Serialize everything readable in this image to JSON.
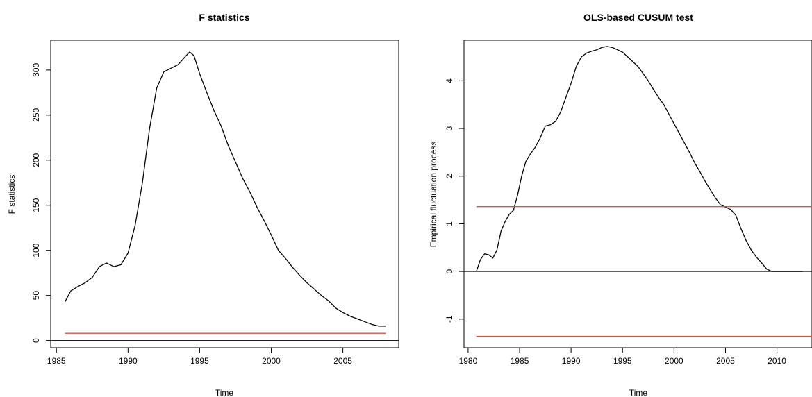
{
  "chart_data": [
    {
      "type": "line",
      "title": "F statistics",
      "xlabel": "Time",
      "ylabel": "F statistics",
      "xlim": [
        1984.6,
        2008.9
      ],
      "ylim": [
        -8,
        333
      ],
      "xticks": [
        1985,
        1990,
        1995,
        2000,
        2005
      ],
      "yticks": [
        0,
        50,
        100,
        150,
        200,
        250,
        300
      ],
      "grid": false,
      "series": [
        {
          "color": "#000000",
          "x": [
            1985.6,
            1986.0,
            1986.5,
            1987.0,
            1987.5,
            1988.0,
            1988.5,
            1989.0,
            1989.5,
            1990.0,
            1990.5,
            1991.0,
            1991.5,
            1992.0,
            1992.5,
            1993.0,
            1993.5,
            1994.0,
            1994.3,
            1994.6,
            1995.0,
            1995.5,
            1996.0,
            1996.5,
            1997.0,
            1997.5,
            1998.0,
            1998.5,
            1999.0,
            1999.5,
            2000.0,
            2000.5,
            2001.0,
            2001.5,
            2002.0,
            2002.5,
            2003.0,
            2003.5,
            2004.0,
            2004.5,
            2005.0,
            2005.5,
            2006.0,
            2006.5,
            2007.0,
            2007.5,
            2008.0
          ],
          "y": [
            43,
            55,
            60,
            64,
            70,
            82,
            86,
            82,
            84,
            97,
            128,
            175,
            235,
            280,
            298,
            302,
            306,
            315,
            320,
            316,
            296,
            275,
            255,
            238,
            216,
            198,
            180,
            165,
            148,
            133,
            117,
            100,
            91,
            81,
            72,
            64,
            57,
            50,
            44,
            36,
            31,
            27,
            24,
            21,
            18,
            16,
            16
          ]
        },
        {
          "color": "#e74c3c",
          "x": [
            1985.6,
            2008.0
          ],
          "y": [
            8,
            8
          ]
        }
      ],
      "hlines": [
        0
      ]
    },
    {
      "type": "line",
      "title": "OLS-based CUSUM test",
      "xlabel": "Time",
      "ylabel": "Empirical fluctuation process",
      "xlim": [
        1979.6,
        2013.4
      ],
      "ylim": [
        -1.6,
        4.85
      ],
      "xticks": [
        1980,
        1985,
        1990,
        1995,
        2000,
        2005,
        2010
      ],
      "yticks": [
        -1,
        0,
        1,
        2,
        3,
        4
      ],
      "grid": false,
      "series": [
        {
          "color": "#000000",
          "x": [
            1980.8,
            1981.2,
            1981.6,
            1982.0,
            1982.4,
            1982.8,
            1983.2,
            1983.6,
            1984.0,
            1984.4,
            1984.8,
            1985.2,
            1985.6,
            1986.0,
            1986.5,
            1987.0,
            1987.5,
            1988.0,
            1988.5,
            1989.0,
            1989.5,
            1990.0,
            1990.5,
            1991.0,
            1991.5,
            1992.0,
            1992.5,
            1993.0,
            1993.5,
            1994.0,
            1994.5,
            1995.0,
            1995.5,
            1996.0,
            1996.5,
            1997.0,
            1997.5,
            1998.0,
            1998.5,
            1999.0,
            1999.5,
            2000.0,
            2000.5,
            2001.0,
            2001.5,
            2002.0,
            2002.5,
            2003.0,
            2003.5,
            2004.0,
            2004.5,
            2005.0,
            2005.5,
            2006.0,
            2006.5,
            2007.0,
            2007.5,
            2008.0,
            2008.5,
            2009.0,
            2009.5,
            2010.0,
            2010.5,
            2011.0,
            2011.5,
            2012.0,
            2012.5
          ],
          "y": [
            0.0,
            0.25,
            0.37,
            0.35,
            0.28,
            0.45,
            0.85,
            1.05,
            1.2,
            1.28,
            1.6,
            2.0,
            2.3,
            2.45,
            2.6,
            2.8,
            3.05,
            3.08,
            3.15,
            3.35,
            3.65,
            3.95,
            4.3,
            4.5,
            4.58,
            4.62,
            4.65,
            4.7,
            4.72,
            4.7,
            4.65,
            4.6,
            4.5,
            4.4,
            4.3,
            4.15,
            4.0,
            3.82,
            3.65,
            3.5,
            3.3,
            3.1,
            2.9,
            2.7,
            2.5,
            2.28,
            2.1,
            1.9,
            1.72,
            1.55,
            1.4,
            1.35,
            1.3,
            1.18,
            0.9,
            0.65,
            0.45,
            0.3,
            0.18,
            0.05,
            0.0,
            0.0,
            0.0,
            0.0,
            0.0,
            0.0,
            0.0
          ]
        },
        {
          "color": "#e74c3c",
          "x": [
            1980.8,
            2013.4
          ],
          "y": [
            1.36,
            1.36
          ]
        },
        {
          "color": "#e74c3c",
          "x": [
            1980.8,
            2013.4
          ],
          "y": [
            -1.36,
            -1.36
          ]
        }
      ],
      "hlines": [
        0
      ]
    }
  ]
}
